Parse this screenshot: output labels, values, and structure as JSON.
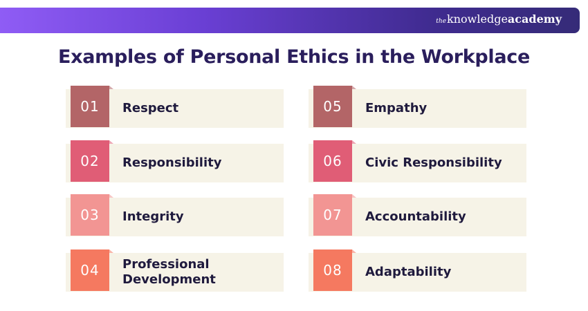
{
  "brand": {
    "prefix": "the",
    "name": "knowledge",
    "suffix": "academy"
  },
  "title": "Examples of Personal Ethics in the Workplace",
  "items": [
    {
      "number": "01",
      "label": "Respect",
      "color": "#b36567"
    },
    {
      "number": "02",
      "label": "Responsibility",
      "color": "#e05d76"
    },
    {
      "number": "03",
      "label": "Integrity",
      "color": "#f29593"
    },
    {
      "number": "04",
      "label": "Professional Development",
      "color": "#f57960"
    },
    {
      "number": "05",
      "label": "Empathy",
      "color": "#b36567"
    },
    {
      "number": "06",
      "label": "Civic Responsibility",
      "color": "#e05d76"
    },
    {
      "number": "07",
      "label": "Accountability",
      "color": "#f29593"
    },
    {
      "number": "08",
      "label": "Adaptability",
      "color": "#f57960"
    }
  ]
}
